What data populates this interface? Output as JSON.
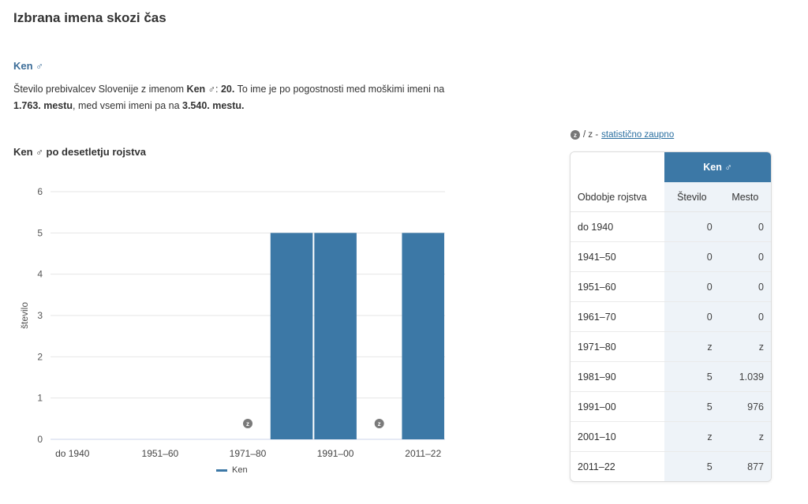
{
  "page_title": "Izbrana imena skozi čas",
  "name_heading": "Ken ♂",
  "description": {
    "p1": "Število prebivalcev Slovenije z imenom ",
    "name": "Ken ♂",
    "p2": ": ",
    "count": "20.",
    "p3": " To ime je po pogostnosti med moškimi imeni na ",
    "rank_male": "1.763. mestu",
    "p4": ", med vsemi imeni pa na ",
    "rank_all": "3.540. mestu."
  },
  "chart_data": {
    "type": "bar",
    "title": "Ken ♂ po desetletju rojstva",
    "categories": [
      "do 1940",
      "1941–50",
      "1951–60",
      "1961–70",
      "1971–80",
      "1981–90",
      "1991–00",
      "2001–10",
      "2011–22"
    ],
    "x_tick_labels": [
      "do 1940",
      "1951–60",
      "1971–80",
      "1991–00",
      "2011–22"
    ],
    "x_tick_categories": [
      "do 1940",
      "1951–60",
      "1971–80",
      "1991–00",
      "2011–22"
    ],
    "series": [
      {
        "name": "Ken",
        "values": [
          0,
          0,
          0,
          0,
          null,
          5,
          5,
          null,
          5
        ]
      }
    ],
    "confidential_markers": [
      "1971–80",
      "2001–10"
    ],
    "confidential_marker_label": "z",
    "ylabel": "število",
    "xlabel": "",
    "ylim": [
      0,
      6
    ],
    "yticks": [
      0,
      1,
      2,
      3,
      4,
      5,
      6
    ],
    "grid": true,
    "legend": "bottom-center",
    "color": "#3c78a6"
  },
  "legend_label": "Ken",
  "confidential_note": {
    "badge": "z",
    "text": "/ z - ",
    "link": "statistično zaupno"
  },
  "table": {
    "name_header": "Ken ♂",
    "col_period": "Obdobje rojstva",
    "col_count": "Število",
    "col_rank": "Mesto",
    "rows": [
      {
        "period": "do 1940",
        "count": "0",
        "rank": "0"
      },
      {
        "period": "1941–50",
        "count": "0",
        "rank": "0"
      },
      {
        "period": "1951–60",
        "count": "0",
        "rank": "0"
      },
      {
        "period": "1961–70",
        "count": "0",
        "rank": "0"
      },
      {
        "period": "1971–80",
        "count": "z",
        "rank": "z"
      },
      {
        "period": "1981–90",
        "count": "5",
        "rank": "1.039"
      },
      {
        "period": "1991–00",
        "count": "5",
        "rank": "976"
      },
      {
        "period": "2001–10",
        "count": "z",
        "rank": "z"
      },
      {
        "period": "2011–22",
        "count": "5",
        "rank": "877"
      }
    ]
  },
  "colors": {
    "accent": "#3c78a6",
    "heading": "#3d6e99",
    "cell_bg": "#eef3f8"
  }
}
